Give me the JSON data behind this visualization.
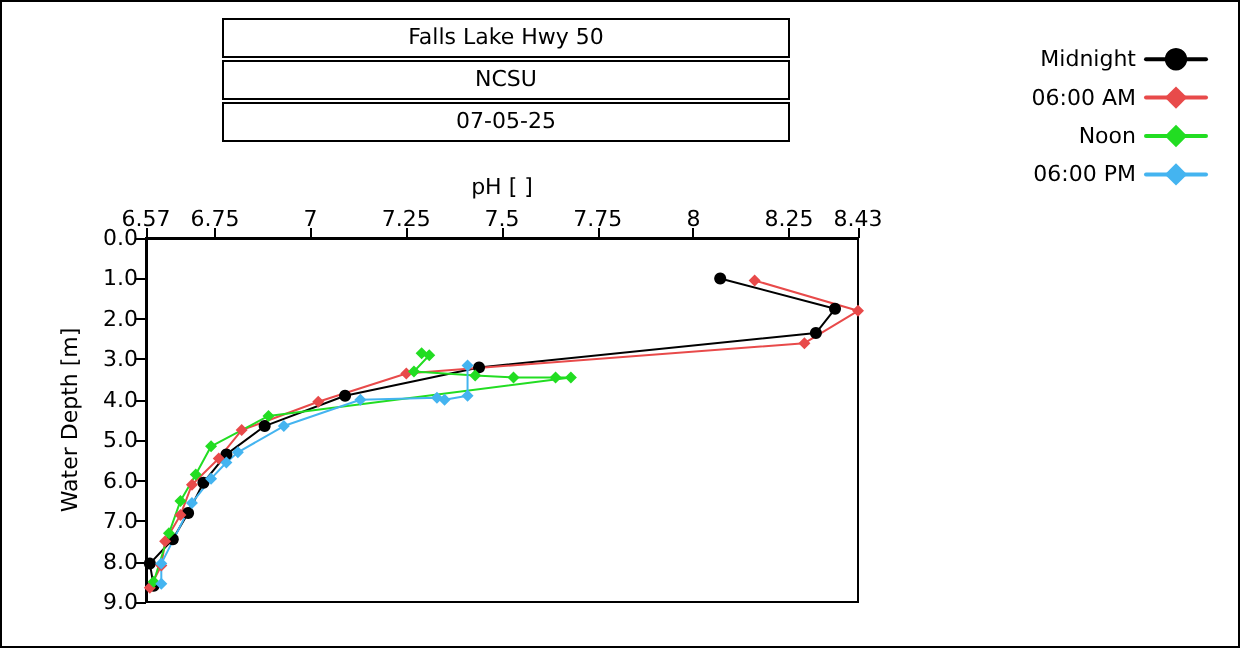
{
  "chart_data": {
    "type": "line",
    "title": "Falls Lake Hwy 50",
    "subtitle": "NCSU",
    "annotations": [
      "07-05-25"
    ],
    "xlabel": "pH [ ]",
    "ylabel": "Water Depth [m]",
    "xlim": [
      6.57,
      8.43
    ],
    "xticks": [
      6.57,
      6.75,
      7,
      7.25,
      7.5,
      7.75,
      8,
      8.25,
      8.43
    ],
    "ylim": [
      9,
      0
    ],
    "yticks": [
      {
        "value": 0,
        "label": "0.0"
      },
      {
        "value": 1,
        "label": "1.0"
      },
      {
        "value": 2,
        "label": "2.0"
      },
      {
        "value": 3,
        "label": "3.0"
      },
      {
        "value": 4,
        "label": "4.0"
      },
      {
        "value": 5,
        "label": "5.0"
      },
      {
        "value": 6,
        "label": "6.0"
      },
      {
        "value": 7,
        "label": "7.0"
      },
      {
        "value": 8,
        "label": "8.0"
      },
      {
        "value": 9,
        "label": "9.0"
      }
    ],
    "grid": false,
    "legend": "top right",
    "line_style": "solid",
    "series": [
      {
        "name": "Midnight",
        "color": "#000000",
        "marker": "circle",
        "x": [
          8.07,
          8.37,
          8.32,
          7.44,
          7.09,
          6.88,
          6.78,
          6.72,
          6.68,
          6.64,
          6.58,
          6.59
        ],
        "values": [
          1.0,
          1.75,
          2.35,
          3.2,
          3.9,
          4.65,
          5.35,
          6.05,
          6.8,
          7.45,
          8.05,
          8.6
        ]
      },
      {
        "name": "06:00 AM",
        "color": "#e84a4a",
        "marker": "diamond",
        "x": [
          8.16,
          8.43,
          8.29,
          7.25,
          7.02,
          6.82,
          6.76,
          6.69,
          6.66,
          6.62,
          6.61,
          6.58
        ],
        "values": [
          1.05,
          1.8,
          2.6,
          3.35,
          4.05,
          4.75,
          5.45,
          6.1,
          6.85,
          7.5,
          8.1,
          8.65
        ]
      },
      {
        "name": "Noon",
        "color": "#22dd22",
        "marker": "diamond",
        "x": [
          7.29,
          7.31,
          7.27,
          7.43,
          7.53,
          7.64,
          7.68,
          6.89,
          6.74,
          6.7,
          6.66,
          6.63,
          6.59
        ],
        "values": [
          2.85,
          2.9,
          3.3,
          3.4,
          3.45,
          3.45,
          3.45,
          4.4,
          5.15,
          5.85,
          6.5,
          7.3,
          8.5
        ]
      },
      {
        "name": "06:00 PM",
        "color": "#44b4f0",
        "marker": "diamond",
        "x": [
          7.41,
          7.41,
          7.35,
          7.33,
          7.13,
          6.93,
          6.81,
          6.78,
          6.74,
          6.69,
          6.61,
          6.61
        ],
        "values": [
          3.15,
          3.9,
          4.0,
          3.95,
          4.0,
          4.65,
          5.3,
          5.55,
          5.95,
          6.55,
          8.05,
          8.55
        ]
      }
    ]
  }
}
